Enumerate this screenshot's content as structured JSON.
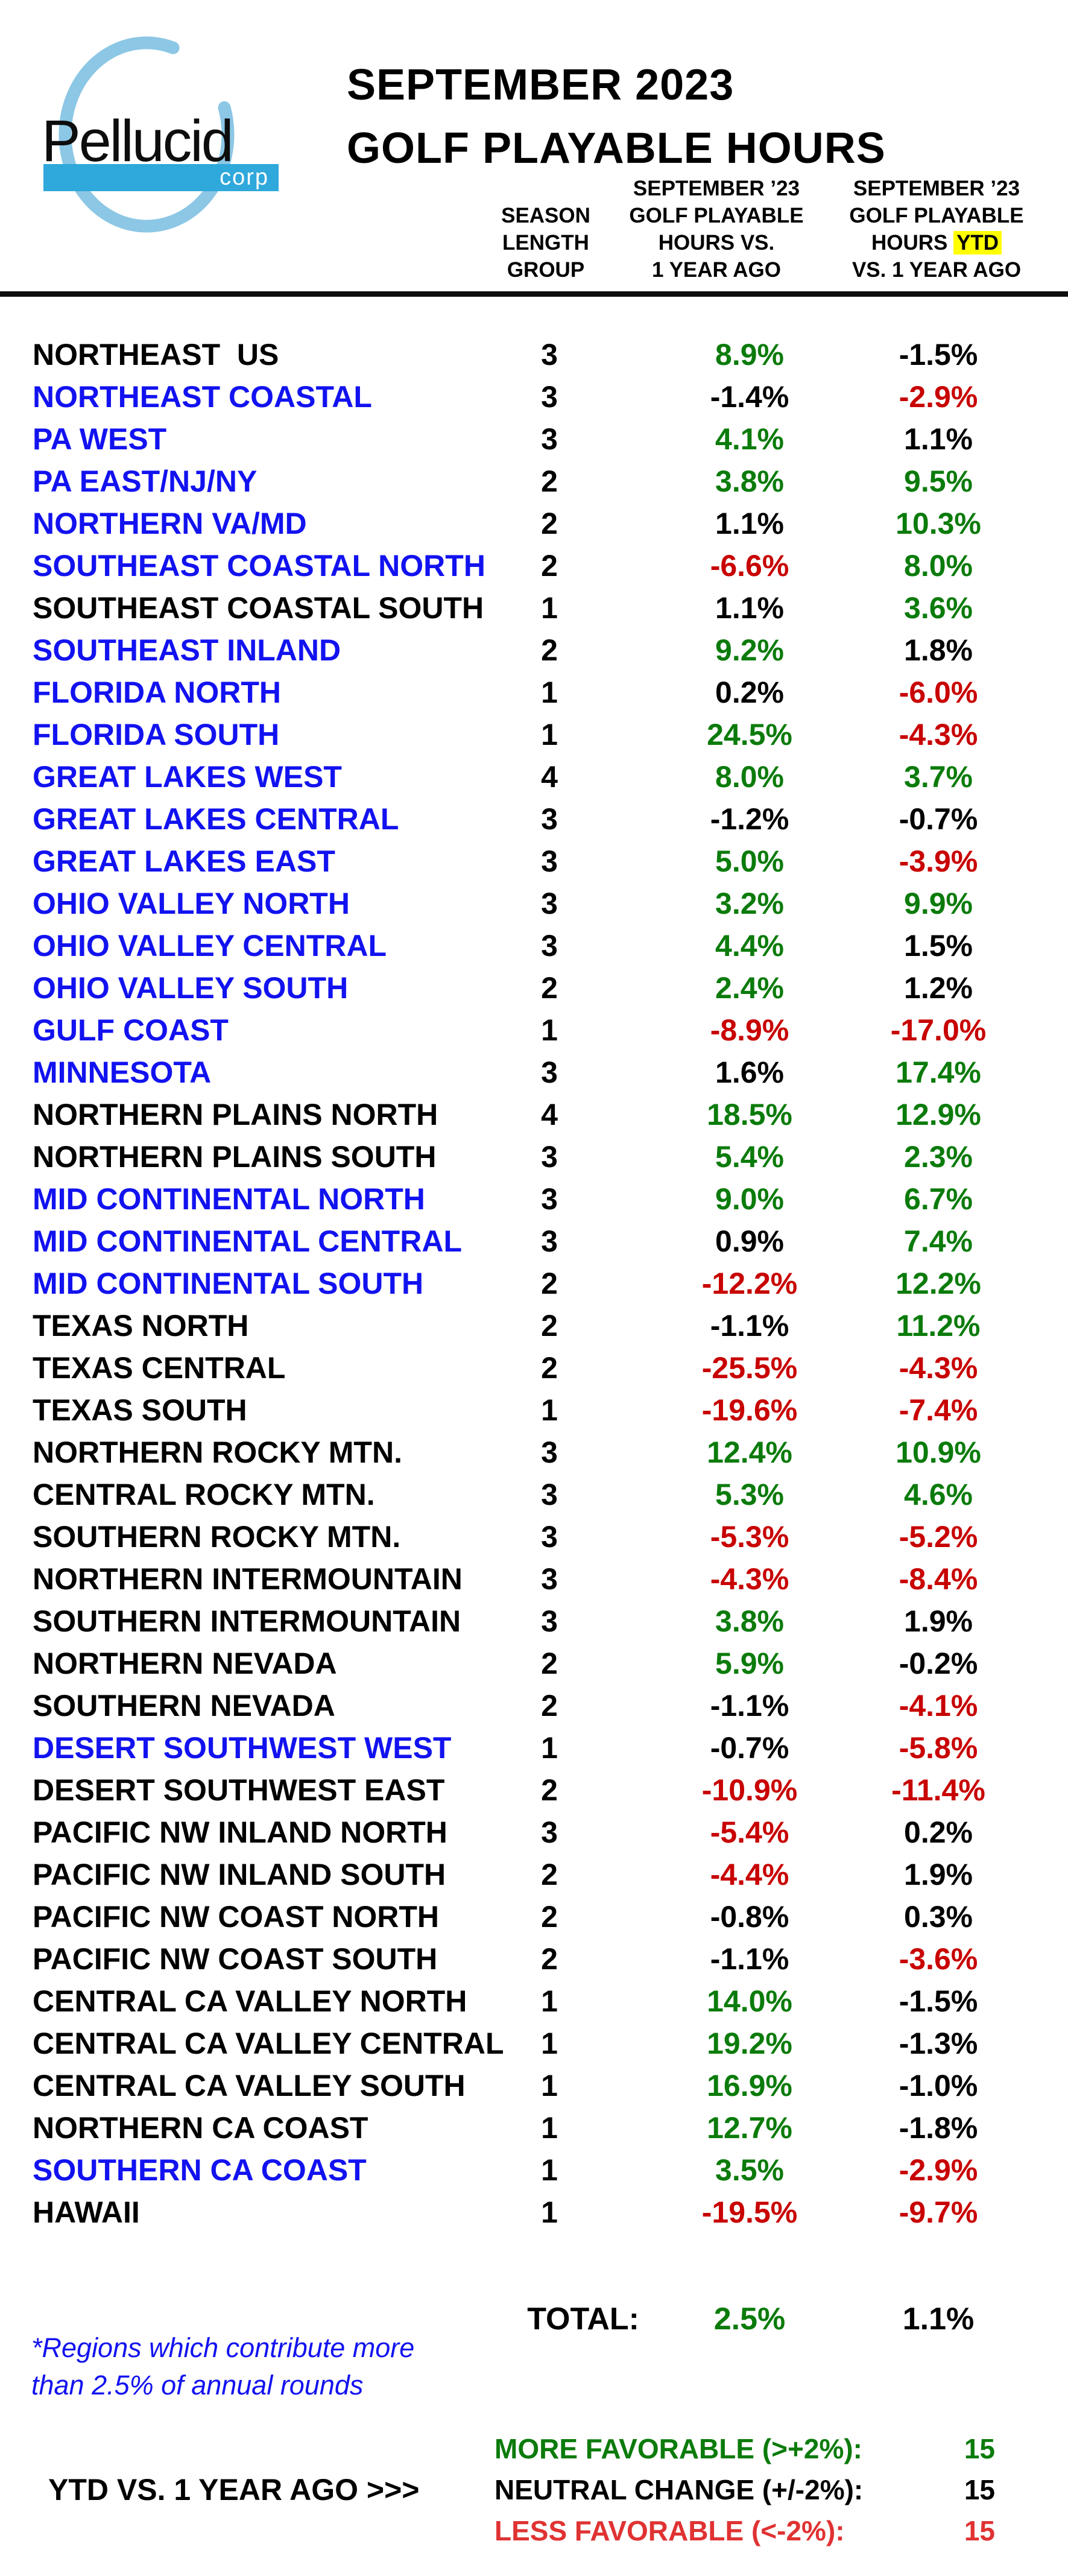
{
  "colors": {
    "blue": "#1212f0",
    "green": "#0b7b0b",
    "red": "#c80000",
    "legend_red": "#e03232",
    "logo_ring": "#8cc7e5",
    "logo_bar": "#2fa8db",
    "highlight_yellow": "#ffff00"
  },
  "logo": {
    "wordmark": "Pellucid",
    "sub": "corp"
  },
  "title": {
    "line1": "SEPTEMBER 2023",
    "line2": "GOLF PLAYABLE HOURS"
  },
  "headers": {
    "season": {
      "l1": "SEASON",
      "l2": "LENGTH",
      "l3": "GROUP"
    },
    "col1": {
      "l1": "SEPTEMBER ’23",
      "l2": "GOLF PLAYABLE",
      "l3": "HOURS VS.",
      "l4": "1 YEAR AGO"
    },
    "col2": {
      "l1": "SEPTEMBER ’23",
      "l2": "GOLF PLAYABLE",
      "l3_pre": "HOURS ",
      "l3_ytd": "YTD",
      "l4": "VS. 1 YEAR AGO"
    }
  },
  "table": {
    "rows": [
      {
        "region": "NORTHEAST  US",
        "blue": false,
        "season": "3",
        "v1": "8.9%",
        "v1c": "green",
        "v2": "-1.5%",
        "v2c": "black"
      },
      {
        "region": "NORTHEAST COASTAL",
        "blue": true,
        "season": "3",
        "v1": "-1.4%",
        "v1c": "black",
        "v2": "-2.9%",
        "v2c": "red"
      },
      {
        "region": "PA WEST",
        "blue": true,
        "season": "3",
        "v1": "4.1%",
        "v1c": "green",
        "v2": "1.1%",
        "v2c": "black"
      },
      {
        "region": "PA EAST/NJ/NY",
        "blue": true,
        "season": "2",
        "v1": "3.8%",
        "v1c": "green",
        "v2": "9.5%",
        "v2c": "green"
      },
      {
        "region": "NORTHERN VA/MD",
        "blue": true,
        "season": "2",
        "v1": "1.1%",
        "v1c": "black",
        "v2": "10.3%",
        "v2c": "green"
      },
      {
        "region": "SOUTHEAST COASTAL NORTH",
        "blue": true,
        "season": "2",
        "v1": "-6.6%",
        "v1c": "red",
        "v2": "8.0%",
        "v2c": "green"
      },
      {
        "region": "SOUTHEAST COASTAL SOUTH",
        "blue": false,
        "season": "1",
        "v1": "1.1%",
        "v1c": "black",
        "v2": "3.6%",
        "v2c": "green"
      },
      {
        "region": "SOUTHEAST INLAND",
        "blue": true,
        "season": "2",
        "v1": "9.2%",
        "v1c": "green",
        "v2": "1.8%",
        "v2c": "black"
      },
      {
        "region": "FLORIDA NORTH",
        "blue": true,
        "season": "1",
        "v1": "0.2%",
        "v1c": "black",
        "v2": "-6.0%",
        "v2c": "red"
      },
      {
        "region": "FLORIDA SOUTH",
        "blue": true,
        "season": "1",
        "v1": "24.5%",
        "v1c": "green",
        "v2": "-4.3%",
        "v2c": "red"
      },
      {
        "region": "GREAT LAKES WEST",
        "blue": true,
        "season": "4",
        "v1": "8.0%",
        "v1c": "green",
        "v2": "3.7%",
        "v2c": "green"
      },
      {
        "region": "GREAT LAKES CENTRAL",
        "blue": true,
        "season": "3",
        "v1": "-1.2%",
        "v1c": "black",
        "v2": "-0.7%",
        "v2c": "black"
      },
      {
        "region": "GREAT LAKES EAST",
        "blue": true,
        "season": "3",
        "v1": "5.0%",
        "v1c": "green",
        "v2": "-3.9%",
        "v2c": "red"
      },
      {
        "region": "OHIO VALLEY NORTH",
        "blue": true,
        "season": "3",
        "v1": "3.2%",
        "v1c": "green",
        "v2": "9.9%",
        "v2c": "green"
      },
      {
        "region": "OHIO VALLEY CENTRAL",
        "blue": true,
        "season": "3",
        "v1": "4.4%",
        "v1c": "green",
        "v2": "1.5%",
        "v2c": "black"
      },
      {
        "region": "OHIO VALLEY SOUTH",
        "blue": true,
        "season": "2",
        "v1": "2.4%",
        "v1c": "green",
        "v2": "1.2%",
        "v2c": "black"
      },
      {
        "region": "GULF COAST",
        "blue": true,
        "season": "1",
        "v1": "-8.9%",
        "v1c": "red",
        "v2": "-17.0%",
        "v2c": "red"
      },
      {
        "region": "MINNESOTA",
        "blue": true,
        "season": "3",
        "v1": "1.6%",
        "v1c": "black",
        "v2": "17.4%",
        "v2c": "green"
      },
      {
        "region": "NORTHERN PLAINS NORTH",
        "blue": false,
        "season": "4",
        "v1": "18.5%",
        "v1c": "green",
        "v2": "12.9%",
        "v2c": "green"
      },
      {
        "region": "NORTHERN PLAINS SOUTH",
        "blue": false,
        "season": "3",
        "v1": "5.4%",
        "v1c": "green",
        "v2": "2.3%",
        "v2c": "green"
      },
      {
        "region": "MID CONTINENTAL NORTH",
        "blue": true,
        "season": "3",
        "v1": "9.0%",
        "v1c": "green",
        "v2": "6.7%",
        "v2c": "green"
      },
      {
        "region": "MID CONTINENTAL CENTRAL",
        "blue": true,
        "season": "3",
        "v1": "0.9%",
        "v1c": "black",
        "v2": "7.4%",
        "v2c": "green"
      },
      {
        "region": "MID CONTINENTAL SOUTH",
        "blue": true,
        "season": "2",
        "v1": "-12.2%",
        "v1c": "red",
        "v2": "12.2%",
        "v2c": "green"
      },
      {
        "region": "TEXAS NORTH",
        "blue": false,
        "season": "2",
        "v1": "-1.1%",
        "v1c": "black",
        "v2": "11.2%",
        "v2c": "green"
      },
      {
        "region": "TEXAS CENTRAL",
        "blue": false,
        "season": "2",
        "v1": "-25.5%",
        "v1c": "red",
        "v2": "-4.3%",
        "v2c": "red"
      },
      {
        "region": "TEXAS SOUTH",
        "blue": false,
        "season": "1",
        "v1": "-19.6%",
        "v1c": "red",
        "v2": "-7.4%",
        "v2c": "red"
      },
      {
        "region": "NORTHERN ROCKY MTN.",
        "blue": false,
        "season": "3",
        "v1": "12.4%",
        "v1c": "green",
        "v2": "10.9%",
        "v2c": "green"
      },
      {
        "region": "CENTRAL ROCKY MTN.",
        "blue": false,
        "season": "3",
        "v1": "5.3%",
        "v1c": "green",
        "v2": "4.6%",
        "v2c": "green"
      },
      {
        "region": "SOUTHERN ROCKY MTN.",
        "blue": false,
        "season": "3",
        "v1": "-5.3%",
        "v1c": "red",
        "v2": "-5.2%",
        "v2c": "red"
      },
      {
        "region": "NORTHERN INTERMOUNTAIN",
        "blue": false,
        "season": "3",
        "v1": "-4.3%",
        "v1c": "red",
        "v2": "-8.4%",
        "v2c": "red"
      },
      {
        "region": "SOUTHERN INTERMOUNTAIN",
        "blue": false,
        "season": "3",
        "v1": "3.8%",
        "v1c": "green",
        "v2": "1.9%",
        "v2c": "black"
      },
      {
        "region": "NORTHERN NEVADA",
        "blue": false,
        "season": "2",
        "v1": "5.9%",
        "v1c": "green",
        "v2": "-0.2%",
        "v2c": "black"
      },
      {
        "region": "SOUTHERN NEVADA",
        "blue": false,
        "season": "2",
        "v1": "-1.1%",
        "v1c": "black",
        "v2": "-4.1%",
        "v2c": "red"
      },
      {
        "region": "DESERT SOUTHWEST WEST",
        "blue": true,
        "season": "1",
        "v1": "-0.7%",
        "v1c": "black",
        "v2": "-5.8%",
        "v2c": "red"
      },
      {
        "region": "DESERT SOUTHWEST EAST",
        "blue": false,
        "season": "2",
        "v1": "-10.9%",
        "v1c": "red",
        "v2": "-11.4%",
        "v2c": "red"
      },
      {
        "region": "PACIFIC NW INLAND NORTH",
        "blue": false,
        "season": "3",
        "v1": "-5.4%",
        "v1c": "red",
        "v2": "0.2%",
        "v2c": "black"
      },
      {
        "region": "PACIFIC NW INLAND SOUTH",
        "blue": false,
        "season": "2",
        "v1": "-4.4%",
        "v1c": "red",
        "v2": "1.9%",
        "v2c": "black"
      },
      {
        "region": "PACIFIC NW COAST NORTH",
        "blue": false,
        "season": "2",
        "v1": "-0.8%",
        "v1c": "black",
        "v2": "0.3%",
        "v2c": "black"
      },
      {
        "region": "PACIFIC NW COAST SOUTH",
        "blue": false,
        "season": "2",
        "v1": "-1.1%",
        "v1c": "black",
        "v2": "-3.6%",
        "v2c": "red"
      },
      {
        "region": "CENTRAL CA VALLEY NORTH",
        "blue": false,
        "season": "1",
        "v1": "14.0%",
        "v1c": "green",
        "v2": "-1.5%",
        "v2c": "black"
      },
      {
        "region": "CENTRAL CA VALLEY CENTRAL",
        "blue": false,
        "season": "1",
        "v1": "19.2%",
        "v1c": "green",
        "v2": "-1.3%",
        "v2c": "black"
      },
      {
        "region": "CENTRAL CA VALLEY SOUTH",
        "blue": false,
        "season": "1",
        "v1": "16.9%",
        "v1c": "green",
        "v2": "-1.0%",
        "v2c": "black"
      },
      {
        "region": "NORTHERN CA COAST",
        "blue": false,
        "season": "1",
        "v1": "12.7%",
        "v1c": "green",
        "v2": "-1.8%",
        "v2c": "black"
      },
      {
        "region": "SOUTHERN CA COAST",
        "blue": true,
        "season": "1",
        "v1": "3.5%",
        "v1c": "green",
        "v2": "-2.9%",
        "v2c": "red"
      },
      {
        "region": "HAWAII",
        "blue": false,
        "season": "1",
        "v1": "-19.5%",
        "v1c": "red",
        "v2": "-9.7%",
        "v2c": "red"
      }
    ]
  },
  "total": {
    "label": "TOTAL:",
    "v1": "2.5%",
    "v1c": "green",
    "v2": "1.1%",
    "v2c": "black"
  },
  "footnote": {
    "line1": "*Regions which contribute more",
    "line2": "than 2.5% of annual rounds"
  },
  "legend": {
    "arrow_label": "YTD VS. 1 YEAR AGO >>>",
    "items": [
      {
        "label": "MORE FAVORABLE (>+2%):",
        "count": "15",
        "color": "green"
      },
      {
        "label": "NEUTRAL CHANGE (+/-2%):",
        "count": "15",
        "color": "black"
      },
      {
        "label": "LESS FAVORABLE (<-2%):",
        "count": "15",
        "color": "red"
      }
    ]
  }
}
